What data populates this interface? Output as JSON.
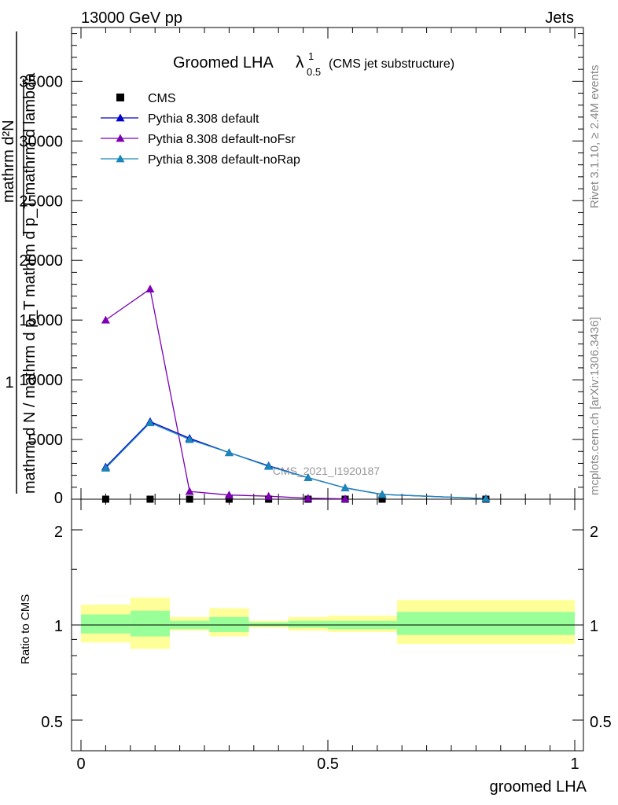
{
  "header": {
    "left": "13000 GeV pp",
    "right": "Jets"
  },
  "side_labels": {
    "rivet": "Rivet 3.1.10, ≥ 2.4M events",
    "mcplots": "mcplots.cern.ch [arXiv:1306.3436]"
  },
  "watermark": "CMS_2021_I1920187",
  "chart_data": [
    {
      "type": "line",
      "title_main": "Groomed LHA",
      "title_symbol": "λ",
      "title_sup": "1",
      "title_sub": "0.5",
      "title_suffix": "(CMS jet substructure)",
      "xlabel": "groomed LHA",
      "ylabel_lines": [
        "mathrm d²N",
        "mathrm d p_T mathrm d lambda",
        "1",
        "mathrm d N / mathrm d p_T"
      ],
      "xlim": [
        0,
        1
      ],
      "ylim": [
        0,
        39500
      ],
      "yticks": [
        5000,
        10000,
        15000,
        20000,
        25000,
        30000,
        35000
      ],
      "ytick_labels": [
        "5000",
        "10000",
        "15000",
        "20000",
        "25000",
        "30000",
        "35000"
      ],
      "series": [
        {
          "name": "CMS",
          "marker": "square",
          "color": "#000000",
          "x": [
            0.05,
            0.14,
            0.22,
            0.3,
            0.38,
            0.46,
            0.535,
            0.61,
            0.82
          ],
          "y": [
            0,
            0,
            0,
            0,
            0,
            0,
            0,
            0,
            0
          ]
        },
        {
          "name": "Pythia 8.308 default",
          "marker": "triangle",
          "color": "#0000cc",
          "x": [
            0.05,
            0.14,
            0.22,
            0.3,
            0.38,
            0.46,
            0.535,
            0.61,
            0.82
          ],
          "y": [
            2700,
            6500,
            5100,
            3900,
            2800,
            1800,
            950,
            400,
            50
          ]
        },
        {
          "name": "Pythia 8.308 default-noFsr",
          "marker": "triangle",
          "color": "#7b00b4",
          "x": [
            0.05,
            0.14,
            0.22,
            0.3,
            0.38,
            0.46,
            0.535
          ],
          "y": [
            15000,
            17600,
            650,
            350,
            250,
            80,
            30
          ]
        },
        {
          "name": "Pythia 8.308 default-noRap",
          "marker": "triangle",
          "color": "#1a87b8",
          "x": [
            0.05,
            0.14,
            0.22,
            0.3,
            0.38,
            0.46,
            0.535,
            0.61,
            0.82
          ],
          "y": [
            2600,
            6400,
            5000,
            3900,
            2750,
            1800,
            950,
            400,
            50
          ]
        }
      ],
      "legend_position": "top-left"
    },
    {
      "type": "area",
      "ylabel": "Ratio to CMS",
      "xlabel": "groomed LHA",
      "xlim": [
        0,
        1
      ],
      "ylim": [
        0.4,
        2.6
      ],
      "ytick_labels": [
        "0.5",
        "1",
        "2"
      ],
      "xtick_labels": [
        "0",
        "0.5",
        "1"
      ],
      "bins": [
        {
          "x0": 0.0,
          "x1": 0.1,
          "outer": [
            0.88,
            1.16
          ],
          "inner": [
            0.94,
            1.08
          ]
        },
        {
          "x0": 0.1,
          "x1": 0.18,
          "outer": [
            0.84,
            1.22
          ],
          "inner": [
            0.92,
            1.11
          ]
        },
        {
          "x0": 0.18,
          "x1": 0.26,
          "outer": [
            0.96,
            1.06
          ],
          "inner": [
            0.97,
            1.03
          ]
        },
        {
          "x0": 0.26,
          "x1": 0.34,
          "outer": [
            0.92,
            1.13
          ],
          "inner": [
            0.95,
            1.06
          ]
        },
        {
          "x0": 0.34,
          "x1": 0.42,
          "outer": [
            0.98,
            1.03
          ],
          "inner": [
            0.99,
            1.02
          ]
        },
        {
          "x0": 0.42,
          "x1": 0.5,
          "outer": [
            0.96,
            1.06
          ],
          "inner": [
            0.98,
            1.03
          ]
        },
        {
          "x0": 0.5,
          "x1": 0.64,
          "outer": [
            0.95,
            1.07
          ],
          "inner": [
            0.97,
            1.03
          ]
        },
        {
          "x0": 0.64,
          "x1": 1.0,
          "outer": [
            0.87,
            1.2
          ],
          "inner": [
            0.93,
            1.1
          ]
        }
      ]
    }
  ]
}
